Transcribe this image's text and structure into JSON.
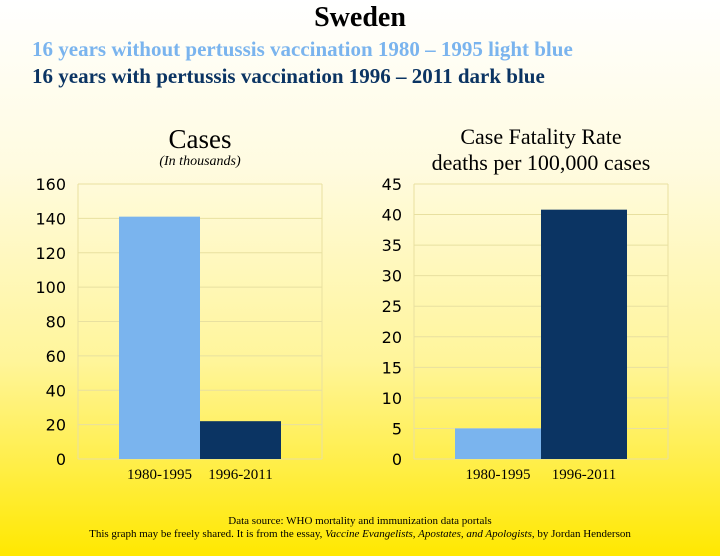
{
  "header": {
    "title": "Sweden",
    "line1": "16 years without pertussis vaccination 1980 – 1995 light blue",
    "line2": "16 years with pertussis vaccination 1996 – 2011 dark blue"
  },
  "colors": {
    "light_blue": "#7ab4ee",
    "dark_blue": "#0b3463",
    "grid": "#e8e0a0"
  },
  "chart_data": [
    {
      "type": "bar",
      "title": "Cases",
      "subtitle": "(In thousands)",
      "categories": [
        "1980-1995",
        "1996-2011"
      ],
      "values": [
        141,
        22
      ],
      "ylim": [
        0,
        160
      ],
      "yticks": [
        0,
        20,
        40,
        60,
        80,
        100,
        120,
        140,
        160
      ],
      "grid": true
    },
    {
      "type": "bar",
      "title": "Case Fatality Rate",
      "subtitle": "deaths per 100,000 cases",
      "categories": [
        "1980-1995",
        "1996-2011"
      ],
      "values": [
        5,
        40.8
      ],
      "ylim": [
        0,
        45
      ],
      "yticks": [
        0,
        5,
        10,
        15,
        20,
        25,
        30,
        35,
        40,
        45
      ],
      "grid": true
    }
  ],
  "footer": {
    "line1": "Data source: WHO mortality and immunization data portals",
    "line2_prefix": "This graph may be freely shared. It is from the essay, ",
    "line2_title": "Vaccine Evangelists, Apostates, and Apologists",
    "line2_suffix": ", by Jordan Henderson"
  }
}
